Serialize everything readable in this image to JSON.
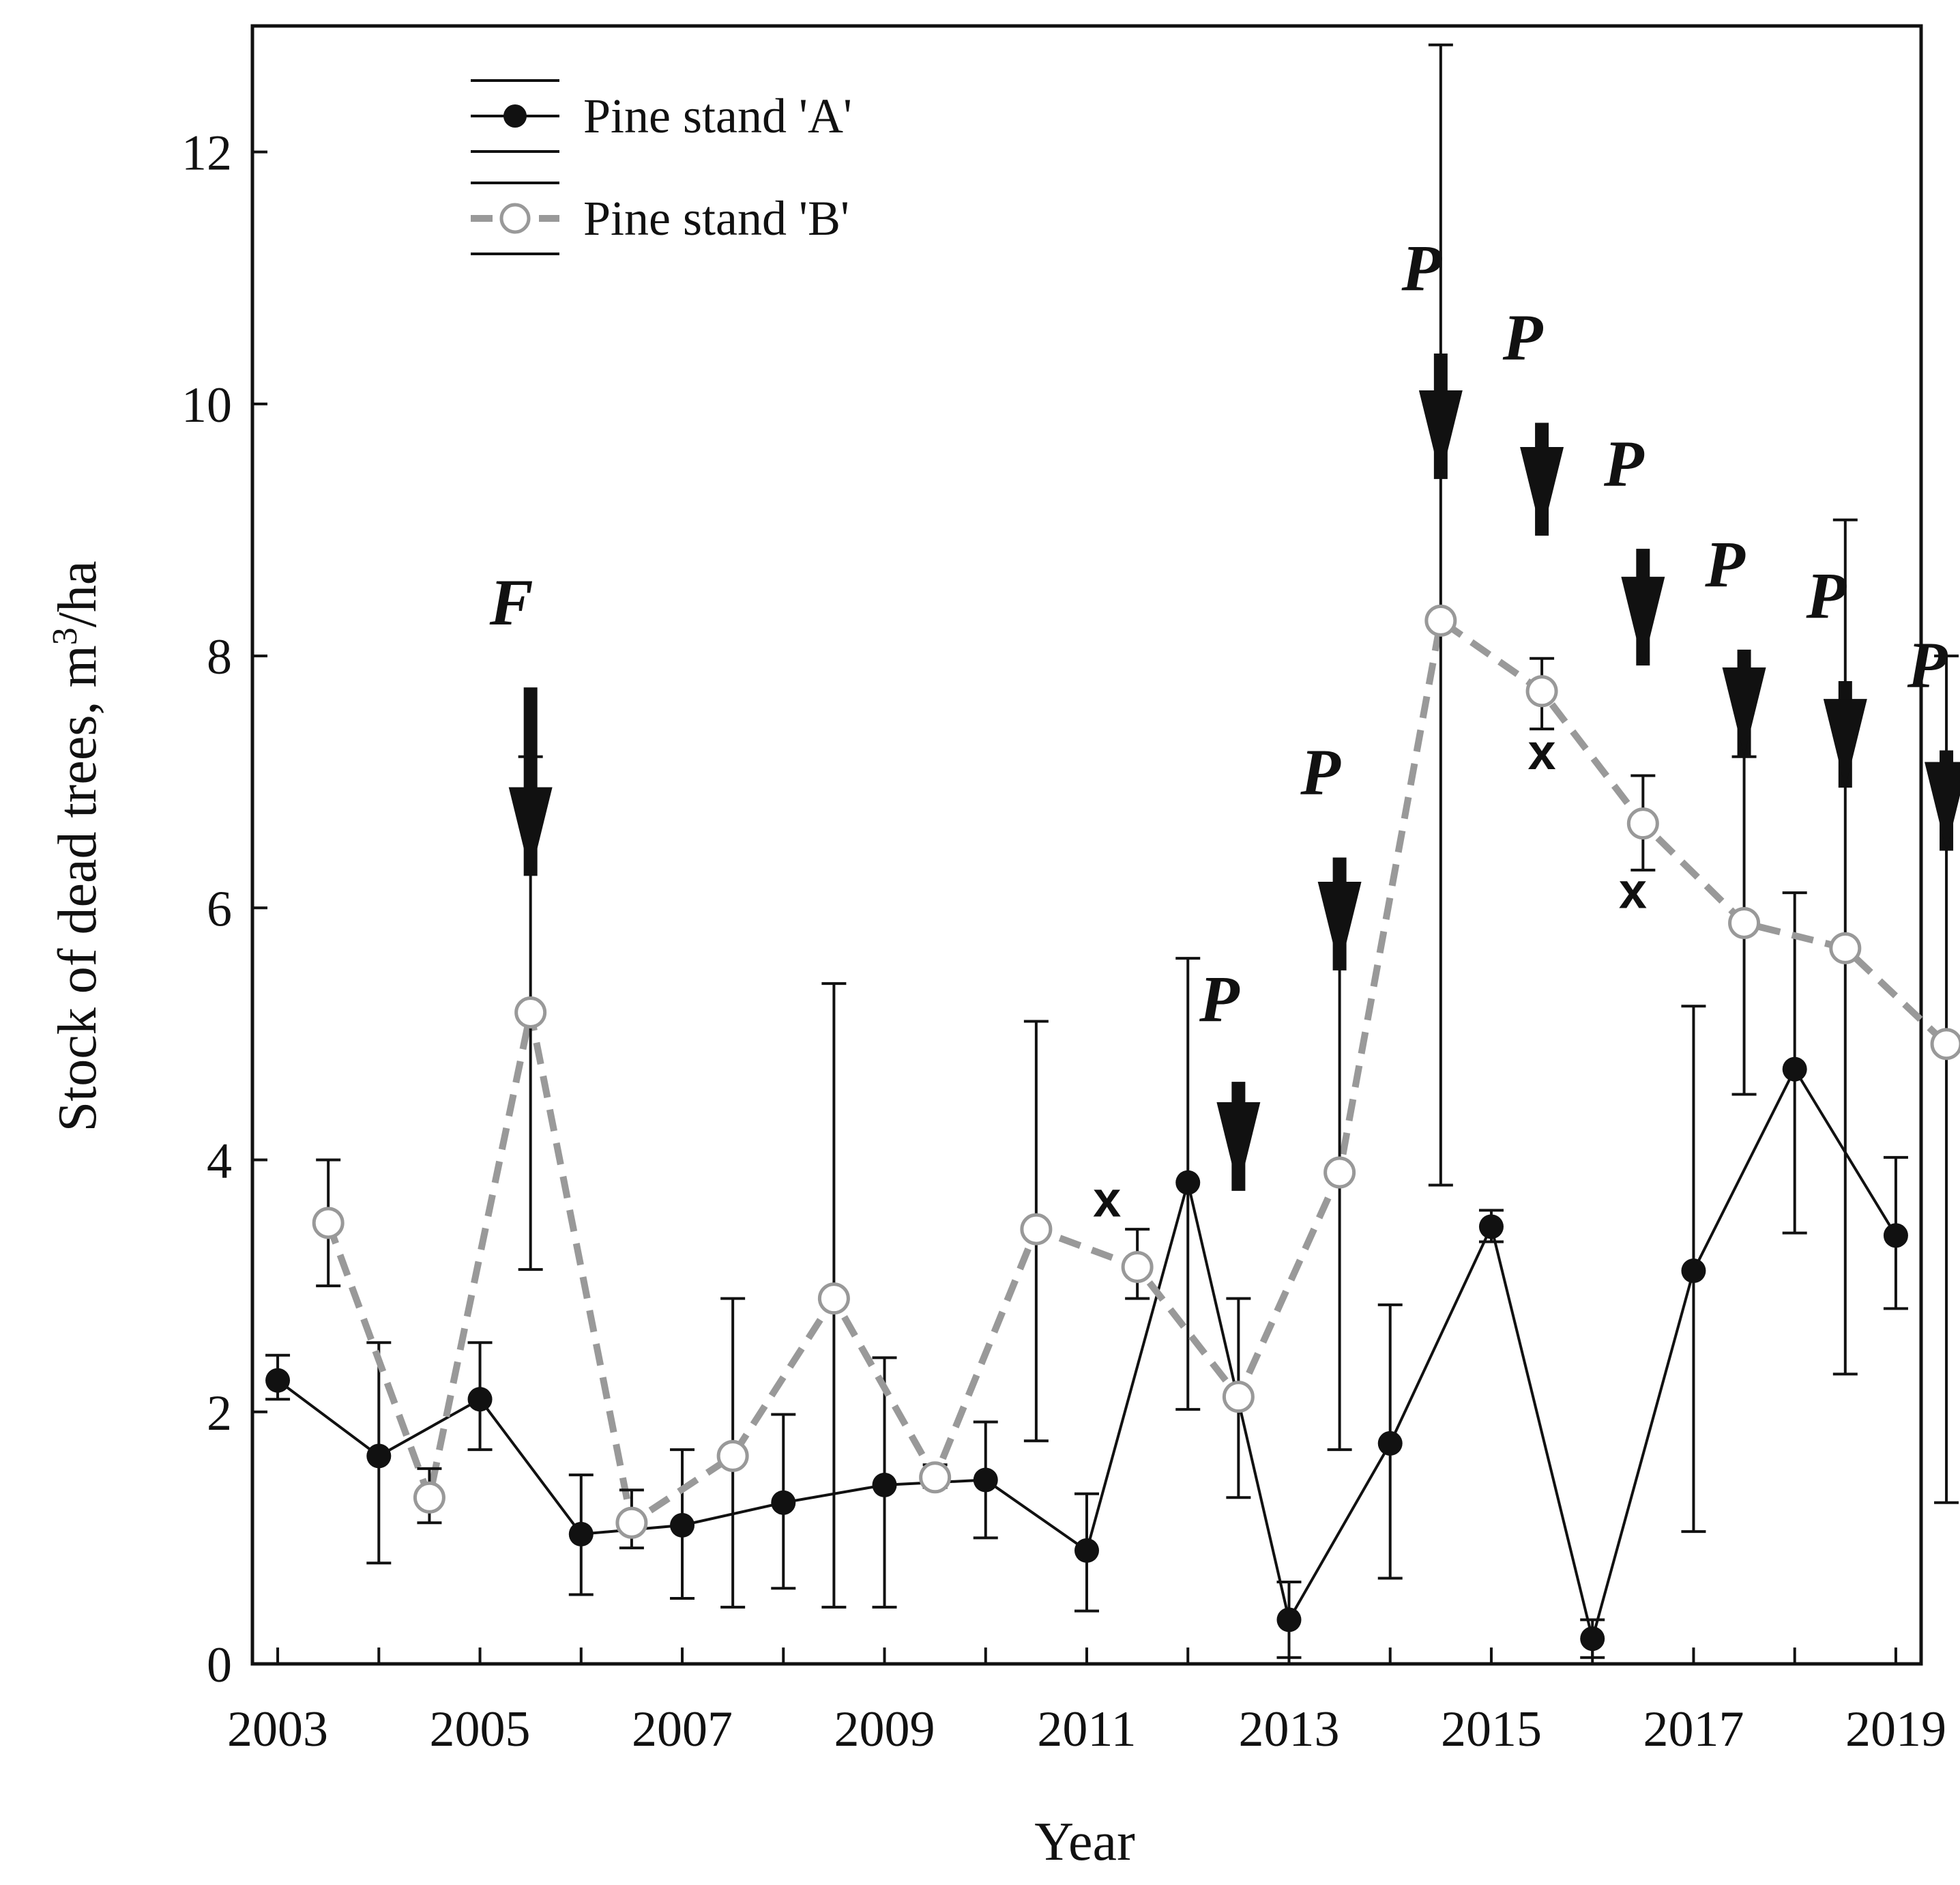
{
  "chart_data": {
    "type": "line",
    "xlabel": "Year",
    "ylabel_main": "Stock of dead trees, m",
    "ylabel_sup": "3",
    "ylabel_tail": "/ha",
    "ylim": [
      0,
      13
    ],
    "yticks": [
      0,
      2,
      4,
      6,
      8,
      10,
      12
    ],
    "xlim": [
      2002.75,
      2019.25
    ],
    "xticks": [
      2003,
      2005,
      2007,
      2009,
      2011,
      2013,
      2015,
      2017,
      2019
    ],
    "legend_position": "top-left",
    "series": [
      {
        "name": "Pine stand 'A'",
        "style": "solid-filled",
        "color": "#111111",
        "points": [
          {
            "x": 2003.0,
            "y": 2.25,
            "lo": 2.1,
            "hi": 2.45
          },
          {
            "x": 2004.0,
            "y": 1.65,
            "lo": 0.8,
            "hi": 2.55
          },
          {
            "x": 2005.0,
            "y": 2.1,
            "lo": 1.7,
            "hi": 2.55
          },
          {
            "x": 2006.0,
            "y": 1.03,
            "lo": 0.55,
            "hi": 1.5
          },
          {
            "x": 2007.0,
            "y": 1.1,
            "lo": 0.52,
            "hi": 1.7
          },
          {
            "x": 2008.0,
            "y": 1.28,
            "lo": 0.6,
            "hi": 1.98
          },
          {
            "x": 2009.0,
            "y": 1.42,
            "lo": 0.45,
            "hi": 2.43
          },
          {
            "x": 2010.0,
            "y": 1.46,
            "lo": 1.0,
            "hi": 1.92
          },
          {
            "x": 2011.0,
            "y": 0.9,
            "lo": 0.42,
            "hi": 1.35
          },
          {
            "x": 2012.0,
            "y": 3.82,
            "lo": 2.02,
            "hi": 5.6
          },
          {
            "x": 2013.0,
            "y": 0.35,
            "lo": 0.05,
            "hi": 0.65
          },
          {
            "x": 2014.0,
            "y": 1.75,
            "lo": 0.68,
            "hi": 2.85
          },
          {
            "x": 2015.0,
            "y": 3.47,
            "lo": 3.35,
            "hi": 3.6
          },
          {
            "x": 2016.0,
            "y": 0.2,
            "lo": 0.05,
            "hi": 0.35
          },
          {
            "x": 2017.0,
            "y": 3.12,
            "lo": 1.05,
            "hi": 5.22
          },
          {
            "x": 2018.0,
            "y": 4.72,
            "lo": 3.42,
            "hi": 6.12
          },
          {
            "x": 2019.0,
            "y": 3.4,
            "lo": 2.82,
            "hi": 4.02
          }
        ]
      },
      {
        "name": "Pine stand 'B'",
        "style": "dashed-open",
        "color": "#999999",
        "points": [
          {
            "x": 2003.5,
            "y": 3.5,
            "lo": 3.0,
            "hi": 4.0
          },
          {
            "x": 2004.5,
            "y": 1.32,
            "lo": 1.12,
            "hi": 1.55
          },
          {
            "x": 2005.5,
            "y": 5.17,
            "lo": 3.13,
            "hi": 7.2
          },
          {
            "x": 2006.5,
            "y": 1.12,
            "lo": 0.92,
            "hi": 1.38
          },
          {
            "x": 2007.5,
            "y": 1.65,
            "lo": 0.45,
            "hi": 2.9
          },
          {
            "x": 2008.5,
            "y": 2.9,
            "lo": 0.45,
            "hi": 5.4
          },
          {
            "x": 2009.5,
            "y": 1.48,
            "lo": 1.4,
            "hi": 1.58
          },
          {
            "x": 2010.5,
            "y": 3.45,
            "lo": 1.77,
            "hi": 5.1
          },
          {
            "x": 2011.5,
            "y": 3.15,
            "lo": 2.9,
            "hi": 3.45
          },
          {
            "x": 2012.5,
            "y": 2.12,
            "lo": 1.32,
            "hi": 2.9
          },
          {
            "x": 2013.5,
            "y": 3.9,
            "lo": 1.7,
            "hi": 6.12
          },
          {
            "x": 2014.5,
            "y": 8.28,
            "lo": 3.8,
            "hi": 12.85
          },
          {
            "x": 2015.5,
            "y": 7.72,
            "lo": 7.42,
            "hi": 7.98
          },
          {
            "x": 2016.5,
            "y": 6.67,
            "lo": 6.3,
            "hi": 7.05
          },
          {
            "x": 2017.5,
            "y": 5.88,
            "lo": 4.52,
            "hi": 7.2
          },
          {
            "x": 2018.5,
            "y": 5.68,
            "lo": 2.3,
            "hi": 9.08
          },
          {
            "x": 2019.5,
            "y": 4.92,
            "lo": 1.28,
            "hi": 8.0
          }
        ]
      }
    ],
    "annotations": [
      {
        "label": "F",
        "kind": "arrow",
        "x": 2005.5,
        "y_top": 7.75,
        "y_tip": 5.55,
        "label_y": 8.25
      },
      {
        "label": "P",
        "kind": "arrow",
        "x": 2012.5,
        "y_top": 4.62,
        "y_tip": 3.05,
        "label_y": 5.1
      },
      {
        "label": "P",
        "kind": "arrow",
        "x": 2013.5,
        "y_top": 6.4,
        "y_tip": 4.8,
        "label_y": 6.9
      },
      {
        "label": "P",
        "kind": "arrow",
        "x": 2014.5,
        "y_top": 10.4,
        "y_tip": 8.7,
        "label_y": 10.9
      },
      {
        "label": "P",
        "kind": "arrow",
        "x": 2015.5,
        "y_top": 9.85,
        "y_tip": 8.25,
        "label_y": 10.35
      },
      {
        "label": "P",
        "kind": "arrow",
        "x": 2016.5,
        "y_top": 8.85,
        "y_tip": 7.22,
        "label_y": 9.35
      },
      {
        "label": "P",
        "kind": "arrow",
        "x": 2017.5,
        "y_top": 8.05,
        "y_tip": 6.5,
        "label_y": 8.55
      },
      {
        "label": "P",
        "kind": "arrow",
        "x": 2018.5,
        "y_top": 7.8,
        "y_tip": 6.25,
        "label_y": 8.3
      },
      {
        "label": "P",
        "kind": "arrow",
        "x": 2019.5,
        "y_top": 7.25,
        "y_tip": 5.75,
        "label_y": 7.75
      },
      {
        "label": "x",
        "kind": "text",
        "x": 2011.2,
        "y": 3.55
      },
      {
        "label": "x",
        "kind": "text",
        "x": 2015.5,
        "y": 7.1
      },
      {
        "label": "x",
        "kind": "text",
        "x": 2016.4,
        "y": 6.0
      }
    ]
  }
}
